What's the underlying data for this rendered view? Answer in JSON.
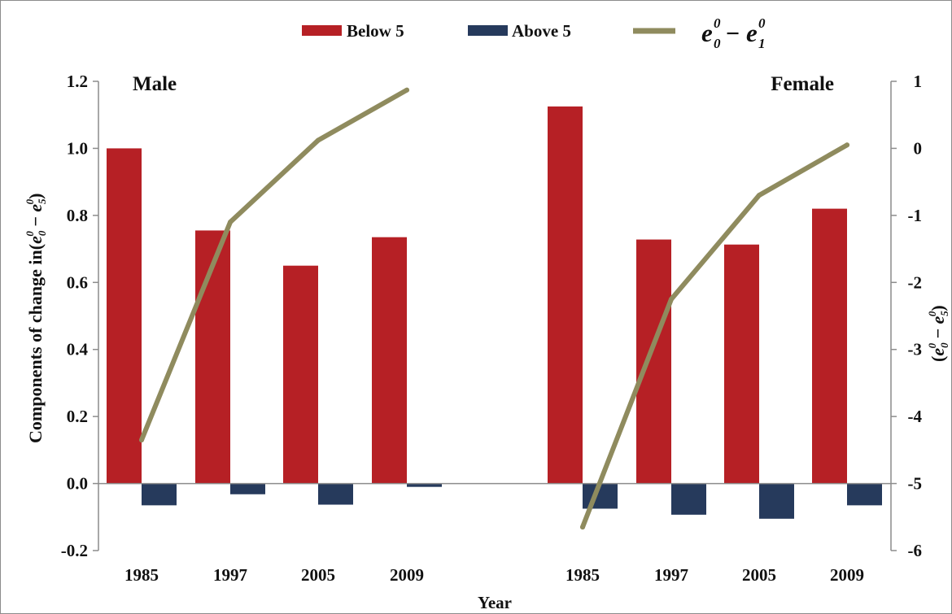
{
  "chart_data": {
    "type": "bar",
    "categories": [
      "1985",
      "1997",
      "2005",
      "2009",
      "1985",
      "1997",
      "2005",
      "2009"
    ],
    "groups": [
      {
        "label": "Male",
        "categories": [
          "1985",
          "1997",
          "2005",
          "2009"
        ]
      },
      {
        "label": "Female",
        "categories": [
          "1985",
          "1997",
          "2005",
          "2009"
        ]
      }
    ],
    "series": [
      {
        "name": "Below 5",
        "type": "bar",
        "axis": "left",
        "color": "#b62025",
        "values": [
          1.0,
          0.755,
          0.65,
          0.735,
          1.125,
          0.728,
          0.713,
          0.82
        ]
      },
      {
        "name": "Above 5",
        "type": "bar",
        "axis": "left",
        "color": "#263a5c",
        "values": [
          -0.065,
          -0.032,
          -0.063,
          -0.01,
          -0.075,
          -0.093,
          -0.105,
          -0.065
        ]
      },
      {
        "name": "e0^0 − e1^0",
        "type": "line",
        "axis": "right",
        "color": "#8f8b5e",
        "values": [
          -4.35,
          -1.1,
          0.12,
          0.87,
          -5.65,
          -2.25,
          -0.7,
          0.05
        ]
      }
    ],
    "legend": {
      "position": "top",
      "labels": [
        "Below 5",
        "Above 5"
      ]
    },
    "xlabel": "Year",
    "ylabel": "Components of change in",
    "ylabel_right": "",
    "ylim": [
      -0.2,
      1.2
    ],
    "ylim_right": [
      -6,
      1
    ],
    "yticks": [
      "-0.2",
      "0.0",
      "0.2",
      "0.4",
      "0.6",
      "0.8",
      "1.0",
      "1.2"
    ],
    "yticks_right": [
      "-6",
      "-5",
      "-4",
      "-3",
      "-2",
      "-1",
      "0",
      "1"
    ],
    "grid": false
  }
}
